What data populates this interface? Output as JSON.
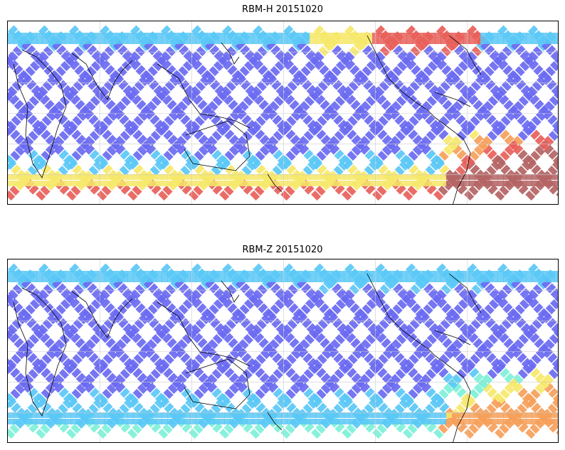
{
  "panels": [
    {
      "title": "RBM-H 20151020",
      "high_lat_south": "warm",
      "high_lat_north_pacific": "warm",
      "south_atlantic": "hot"
    },
    {
      "title": "RBM-Z 20151020",
      "high_lat_south": "mixed",
      "high_lat_north_pacific": "cool",
      "south_atlantic": "warm"
    }
  ],
  "colors": {
    "track_low": "#6a6af2",
    "track_mid": "#5ac8f6",
    "track_teal": "#7ef0d8",
    "track_yellow": "#f6e86a",
    "track_orange": "#f6a05a",
    "track_red": "#e8605a",
    "track_darkred": "#b46464",
    "coastline": "#000000",
    "grid": "#cccccc"
  }
}
